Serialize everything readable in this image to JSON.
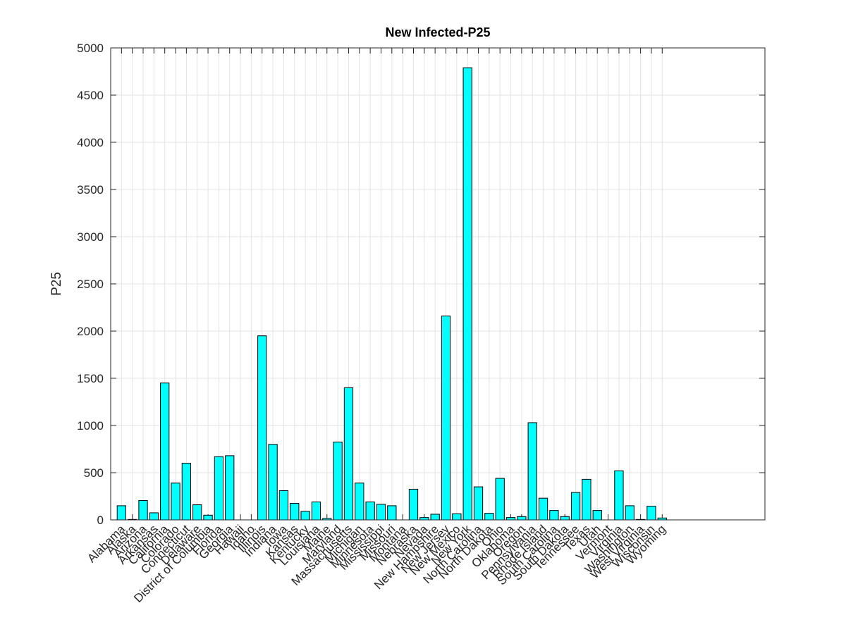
{
  "chart_data": {
    "type": "bar",
    "title": "New Infected-P25",
    "ylabel": "P25",
    "categories": [
      "Alabama",
      "Alaska",
      "Arizona",
      "Arkansas",
      "California",
      "Colorado",
      "Connecticut",
      "Delaware",
      "District of Columbia",
      "Florida",
      "Georgia",
      "Hawaii",
      "Idaho",
      "Illinois",
      "Indiana",
      "Iowa",
      "Kansas",
      "Kentucky",
      "Louisiana",
      "Maine",
      "Maryland",
      "Massachusetts",
      "Michigan",
      "Minnesota",
      "Mississippi",
      "Missouri",
      "Montana",
      "Nebraska",
      "Nevada",
      "New Hampshire",
      "New Jersey",
      "New Mexico",
      "New York",
      "North Carolina",
      "North Dakota",
      "Ohio",
      "Oklahoma",
      "Oregon",
      "Pennsylvania",
      "Rhode Island",
      "South Carolina",
      "South Dakota",
      "Tennessee",
      "Texas",
      "Utah",
      "Vermont",
      "Virginia",
      "Washington",
      "West Virginia",
      "Wisconsin",
      "Wyoming"
    ],
    "values": [
      150,
      5,
      205,
      75,
      1450,
      390,
      600,
      160,
      50,
      670,
      680,
      0,
      0,
      1950,
      800,
      310,
      175,
      90,
      190,
      15,
      825,
      1400,
      390,
      190,
      165,
      150,
      0,
      325,
      25,
      60,
      2160,
      65,
      4790,
      350,
      70,
      440,
      25,
      35,
      1030,
      230,
      100,
      35,
      290,
      430,
      100,
      0,
      520,
      150,
      5,
      145,
      20
    ],
    "color": "#00ffff",
    "xlim": [
      0,
      60.5
    ],
    "ylim": [
      0,
      5000
    ],
    "yticks": [
      0,
      500,
      1000,
      1500,
      2000,
      2500,
      3000,
      3500,
      4000,
      4500,
      5000
    ],
    "grid": true
  }
}
